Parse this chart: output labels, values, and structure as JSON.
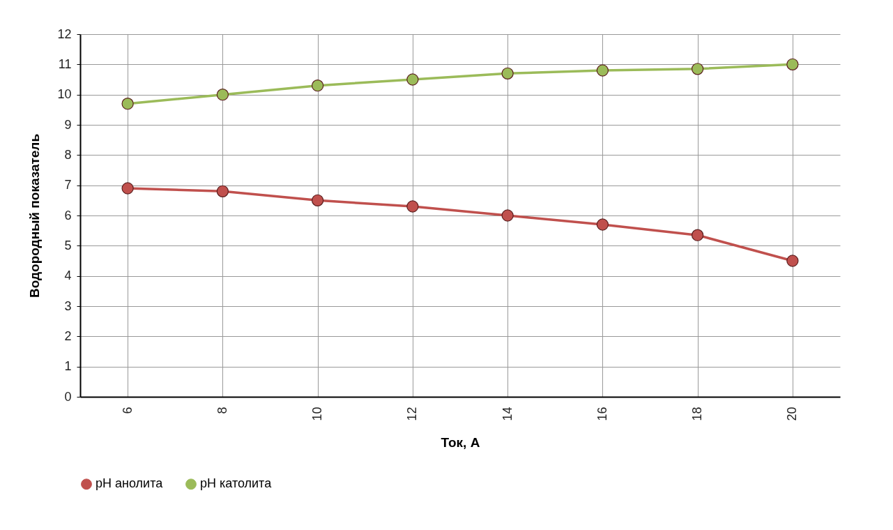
{
  "chart_data": {
    "type": "line",
    "xlabel": "Ток, А",
    "ylabel": "Водородный показатель",
    "categories": [
      "6",
      "8",
      "10",
      "12",
      "14",
      "16",
      "18",
      "20"
    ],
    "ylim": [
      0,
      12
    ],
    "yticks": [
      0,
      1,
      2,
      3,
      4,
      5,
      6,
      7,
      8,
      9,
      10,
      11,
      12
    ],
    "series": [
      {
        "name": "pH анолита",
        "color": "#c0504d",
        "values": [
          6.9,
          6.8,
          6.5,
          6.3,
          6.0,
          5.7,
          5.35,
          4.5
        ]
      },
      {
        "name": "pH католита",
        "color": "#9bbb59",
        "values": [
          9.7,
          10.0,
          10.3,
          10.5,
          10.7,
          10.8,
          10.85,
          11.0
        ]
      }
    ],
    "grid": true,
    "legend": "bottom",
    "marker": "circle",
    "line_style": "solid"
  }
}
